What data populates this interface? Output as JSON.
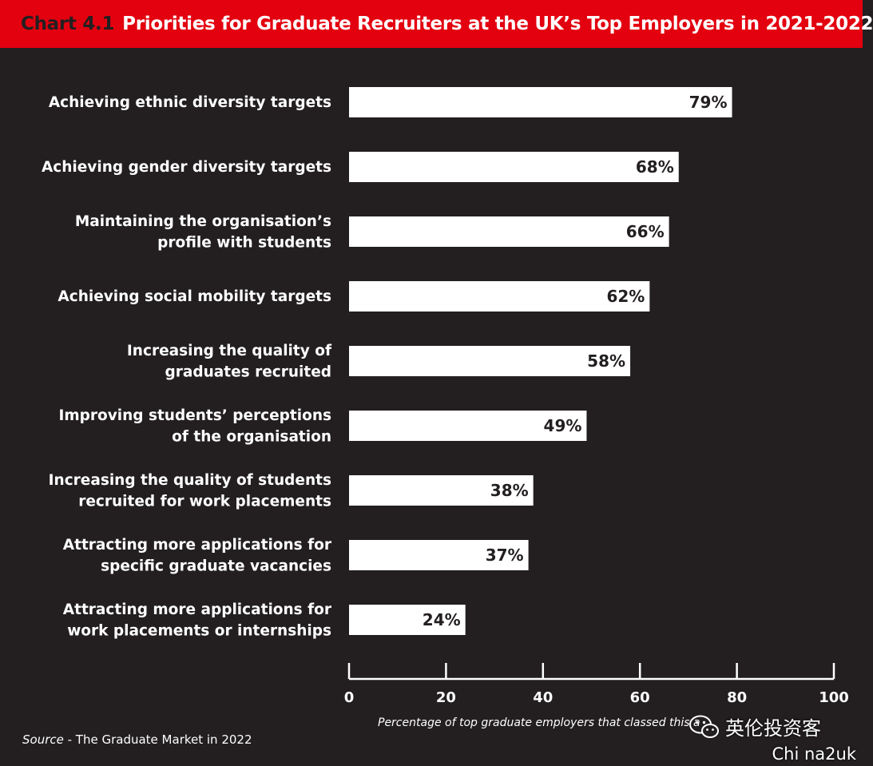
{
  "header": {
    "prefix": "Chart 4.1",
    "title": "Priorities for Graduate Recruiters at the UK’s Top Employers in 2021-2022"
  },
  "chart_data": {
    "type": "bar",
    "orientation": "horizontal",
    "title": "Priorities for Graduate Recruiters at the UK’s Top Employers in 2021-2022",
    "categories": [
      [
        "Achieving ethnic diversity targets"
      ],
      [
        "Achieving gender diversity targets"
      ],
      [
        "Maintaining the organisation’s",
        "profile with students"
      ],
      [
        "Achieving social mobility targets"
      ],
      [
        "Increasing the quality of",
        "graduates recruited"
      ],
      [
        "Improving students’ perceptions",
        "of the organisation"
      ],
      [
        "Increasing the quality of students",
        "recruited for work placements"
      ],
      [
        "Attracting more applications for",
        "specific graduate vacancies"
      ],
      [
        "Attracting more applications for",
        "work placements or internships"
      ]
    ],
    "values": [
      79,
      68,
      66,
      62,
      58,
      49,
      38,
      37,
      24
    ],
    "value_labels": [
      "79%",
      "68%",
      "66%",
      "62%",
      "58%",
      "49%",
      "38%",
      "37%",
      "24%"
    ],
    "xlim": [
      0,
      100
    ],
    "xticks": [
      0,
      20,
      40,
      60,
      80,
      100
    ],
    "xtick_labels": [
      "0",
      "20",
      "40",
      "60",
      "80",
      "100"
    ],
    "xlabel": "Percentage of top graduate employers that classed this a",
    "bar_color": "#ffffff",
    "background_color": "#231f20",
    "accent_color": "#e3000f",
    "grid": false,
    "legend": "none"
  },
  "footer": {
    "source_prefix": "Source",
    "source_text": " - The Graduate Market in 2022"
  },
  "watermark": {
    "icon": "wechat-icon",
    "text": "英伦投资客",
    "corner_text": "Chi na2uk"
  }
}
